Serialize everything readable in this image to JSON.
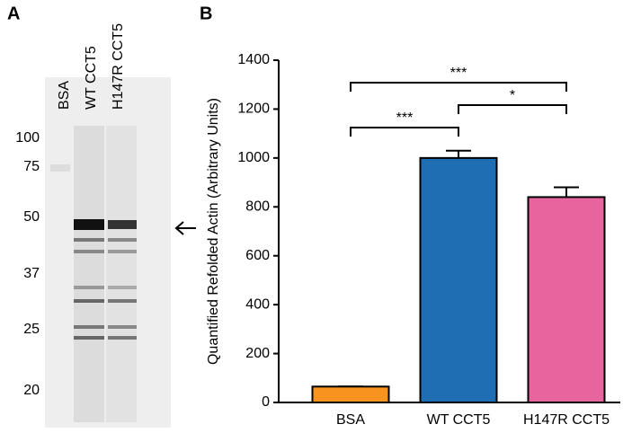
{
  "panels": {
    "a": "A",
    "b": "B"
  },
  "gel": {
    "lanes": [
      "BSA",
      "WT CCT5",
      "H147R CCT5"
    ],
    "markers": [
      "100",
      "75",
      "50",
      "37",
      "25",
      "20"
    ]
  },
  "chart_data": {
    "type": "bar",
    "ylabel": "Quantified Refolded Actin (Arbitrary Units)",
    "categories": [
      "BSA",
      "WT CCT5",
      "H147R CCT5"
    ],
    "values": [
      65,
      1000,
      840
    ],
    "errors": [
      0,
      30,
      40
    ],
    "colors": [
      "#f7931e",
      "#1f6db3",
      "#e8649e"
    ],
    "ylim": [
      0,
      1400
    ],
    "yticks": [
      0,
      200,
      400,
      600,
      800,
      1000,
      1200,
      1400
    ],
    "brackets": [
      {
        "between": [
          "BSA",
          "WT CCT5"
        ],
        "label": "***"
      },
      {
        "between": [
          "WT CCT5",
          "H147R CCT5"
        ],
        "label": "*"
      },
      {
        "between": [
          "BSA",
          "H147R CCT5"
        ],
        "label": "***"
      }
    ]
  }
}
